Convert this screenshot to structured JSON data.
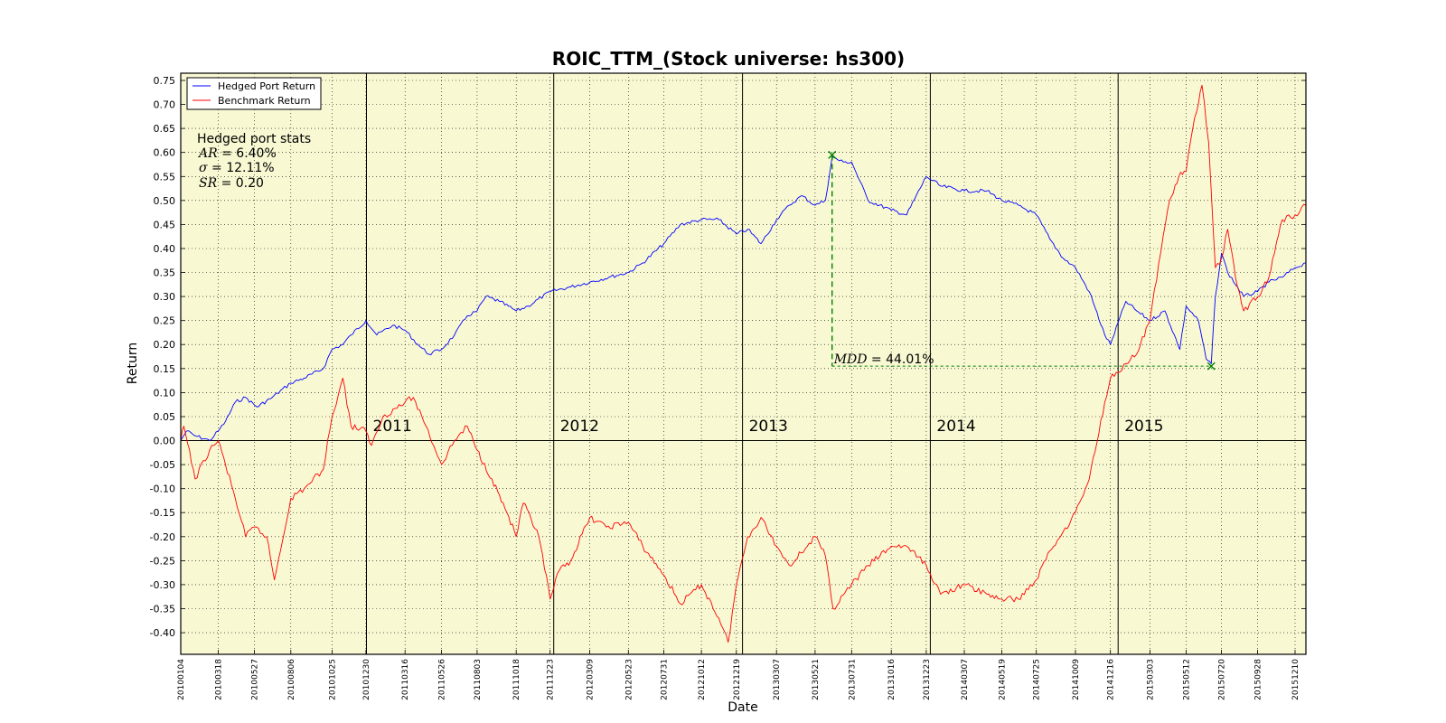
{
  "chart_data": {
    "type": "line",
    "title": "ROIC_TTM_(Stock universe: hs300)",
    "xlabel": "Date",
    "ylabel": "Return",
    "ylim": [
      -0.445,
      0.765
    ],
    "yticks": [
      0.75,
      0.7,
      0.65,
      0.6,
      0.55,
      0.5,
      0.45,
      0.4,
      0.35,
      0.3,
      0.25,
      0.2,
      0.15,
      0.1,
      0.05,
      0.0,
      -0.05,
      -0.1,
      -0.15,
      -0.2,
      -0.25,
      -0.3,
      -0.35,
      -0.4
    ],
    "ytick_labels": [
      "0.75",
      "0.70",
      "0.65",
      "0.60",
      "0.55",
      "0.50",
      "0.45",
      "0.40",
      "0.35",
      "0.30",
      "0.25",
      "0.20",
      "0.15",
      "0.10",
      "0.05",
      "0.00",
      "-0.05",
      "-0.10",
      "-0.15",
      "-0.20",
      "-0.25",
      "-0.30",
      "-0.35",
      "-0.40"
    ],
    "xlim": [
      "20100104",
      "20151231"
    ],
    "xticks": [
      "20100104",
      "20100318",
      "20100527",
      "20100806",
      "20101025",
      "20101230",
      "20110316",
      "20110526",
      "20110803",
      "20111018",
      "20111223",
      "20120309",
      "20120523",
      "20120731",
      "20121012",
      "20121219",
      "20130307",
      "20130521",
      "20130731",
      "20131016",
      "20131223",
      "20140307",
      "20140519",
      "20140725",
      "20141009",
      "20141216",
      "20150303",
      "20150512",
      "20150720",
      "20150928",
      "20151210"
    ],
    "year_boundaries": [
      {
        "label": "2011",
        "date": "20101231"
      },
      {
        "label": "2012",
        "date": "20111230"
      },
      {
        "label": "2013",
        "date": "20121231"
      },
      {
        "label": "2014",
        "date": "20131231"
      },
      {
        "label": "2015",
        "date": "20141231"
      }
    ],
    "grid": true,
    "legend_position": "top-left",
    "series": [
      {
        "name": "Hedged Port Return",
        "color": "#0000ff",
        "points": [
          [
            "20100104",
            0.0
          ],
          [
            "20100115",
            0.02
          ],
          [
            "20100201",
            0.01
          ],
          [
            "20100301",
            0.0
          ],
          [
            "20100318",
            0.02
          ],
          [
            "20100401",
            0.04
          ],
          [
            "20100420",
            0.08
          ],
          [
            "20100510",
            0.09
          ],
          [
            "20100601",
            0.07
          ],
          [
            "20100701",
            0.09
          ],
          [
            "20100806",
            0.12
          ],
          [
            "20100901",
            0.13
          ],
          [
            "20101008",
            0.15
          ],
          [
            "20101025",
            0.19
          ],
          [
            "20101115",
            0.2
          ],
          [
            "20101201",
            0.22
          ],
          [
            "20101230",
            0.25
          ],
          [
            "20110120",
            0.22
          ],
          [
            "20110220",
            0.24
          ],
          [
            "20110316",
            0.23
          ],
          [
            "20110410",
            0.2
          ],
          [
            "20110501",
            0.18
          ],
          [
            "20110526",
            0.19
          ],
          [
            "20110620",
            0.22
          ],
          [
            "20110715",
            0.26
          ],
          [
            "20110803",
            0.27
          ],
          [
            "20110820",
            0.3
          ],
          [
            "20110915",
            0.29
          ],
          [
            "20111018",
            0.27
          ],
          [
            "20111110",
            0.28
          ],
          [
            "20111223",
            0.31
          ],
          [
            "20120201",
            0.32
          ],
          [
            "20120309",
            0.33
          ],
          [
            "20120415",
            0.34
          ],
          [
            "20120523",
            0.35
          ],
          [
            "20120620",
            0.37
          ],
          [
            "20120731",
            0.41
          ],
          [
            "20120901",
            0.45
          ],
          [
            "20121012",
            0.46
          ],
          [
            "20121115",
            0.46
          ],
          [
            "20121219",
            0.43
          ],
          [
            "20130110",
            0.44
          ],
          [
            "20130205",
            0.41
          ],
          [
            "20130307",
            0.46
          ],
          [
            "20130401",
            0.49
          ],
          [
            "20130425",
            0.51
          ],
          [
            "20130521",
            0.49
          ],
          [
            "20130610",
            0.5
          ],
          [
            "20130623",
            0.59
          ],
          [
            "20130715",
            0.58
          ],
          [
            "20130731",
            0.58
          ],
          [
            "20130901",
            0.5
          ],
          [
            "20131016",
            0.48
          ],
          [
            "20131115",
            0.47
          ],
          [
            "20131223",
            0.55
          ],
          [
            "20140120",
            0.53
          ],
          [
            "20140307",
            0.52
          ],
          [
            "20140420",
            0.52
          ],
          [
            "20140519",
            0.5
          ],
          [
            "20140620",
            0.49
          ],
          [
            "20140725",
            0.47
          ],
          [
            "20140820",
            0.42
          ],
          [
            "20140915",
            0.38
          ],
          [
            "20141009",
            0.36
          ],
          [
            "20141105",
            0.31
          ],
          [
            "20141205",
            0.22
          ],
          [
            "20141216",
            0.2
          ],
          [
            "20150115",
            0.29
          ],
          [
            "20150205",
            0.27
          ],
          [
            "20150303",
            0.25
          ],
          [
            "20150401",
            0.27
          ],
          [
            "20150430",
            0.19
          ],
          [
            "20150512",
            0.28
          ],
          [
            "20150605",
            0.25
          ],
          [
            "20150620",
            0.17
          ],
          [
            "20150630",
            0.16
          ],
          [
            "20150708",
            0.3
          ],
          [
            "20150720",
            0.39
          ],
          [
            "20150801",
            0.35
          ],
          [
            "20150901",
            0.3
          ],
          [
            "20150928",
            0.31
          ],
          [
            "20151020",
            0.33
          ],
          [
            "20151115",
            0.34
          ],
          [
            "20151210",
            0.36
          ],
          [
            "20151231",
            0.37
          ]
        ]
      },
      {
        "name": "Benchmark Return",
        "color": "#ff0000",
        "points": [
          [
            "20100104",
            0.0
          ],
          [
            "20100110",
            0.03
          ],
          [
            "20100201",
            -0.08
          ],
          [
            "20100301",
            -0.02
          ],
          [
            "20100318",
            0.0
          ],
          [
            "20100401",
            -0.05
          ],
          [
            "20100420",
            -0.12
          ],
          [
            "20100510",
            -0.2
          ],
          [
            "20100527",
            -0.18
          ],
          [
            "20100620",
            -0.2
          ],
          [
            "20100705",
            -0.29
          ],
          [
            "20100806",
            -0.12
          ],
          [
            "20100901",
            -0.1
          ],
          [
            "20101008",
            -0.06
          ],
          [
            "20101025",
            0.05
          ],
          [
            "20101115",
            0.13
          ],
          [
            "20101201",
            0.03
          ],
          [
            "20101230",
            0.02
          ],
          [
            "20110110",
            -0.01
          ],
          [
            "20110201",
            0.05
          ],
          [
            "20110316",
            0.08
          ],
          [
            "20110401",
            0.09
          ],
          [
            "20110426",
            0.03
          ],
          [
            "20110526",
            -0.05
          ],
          [
            "20110620",
            0.0
          ],
          [
            "20110715",
            0.03
          ],
          [
            "20110803",
            -0.02
          ],
          [
            "20110901",
            -0.08
          ],
          [
            "20110930",
            -0.15
          ],
          [
            "20111018",
            -0.2
          ],
          [
            "20111101",
            -0.13
          ],
          [
            "20111201",
            -0.2
          ],
          [
            "20111223",
            -0.33
          ],
          [
            "20120110",
            -0.27
          ],
          [
            "20120201",
            -0.25
          ],
          [
            "20120309",
            -0.16
          ],
          [
            "20120410",
            -0.18
          ],
          [
            "20120523",
            -0.17
          ],
          [
            "20120620",
            -0.22
          ],
          [
            "20120731",
            -0.28
          ],
          [
            "20120901",
            -0.34
          ],
          [
            "20121012",
            -0.3
          ],
          [
            "20121115",
            -0.37
          ],
          [
            "20121203",
            -0.42
          ],
          [
            "20121219",
            -0.3
          ],
          [
            "20130110",
            -0.2
          ],
          [
            "20130205",
            -0.16
          ],
          [
            "20130307",
            -0.22
          ],
          [
            "20130401",
            -0.26
          ],
          [
            "20130521",
            -0.2
          ],
          [
            "20130610",
            -0.24
          ],
          [
            "20130625",
            -0.35
          ],
          [
            "20130731",
            -0.3
          ],
          [
            "20130901",
            -0.26
          ],
          [
            "20131016",
            -0.22
          ],
          [
            "20131115",
            -0.22
          ],
          [
            "20131223",
            -0.26
          ],
          [
            "20140120",
            -0.32
          ],
          [
            "20140307",
            -0.3
          ],
          [
            "20140420",
            -0.32
          ],
          [
            "20140519",
            -0.33
          ],
          [
            "20140620",
            -0.33
          ],
          [
            "20140725",
            -0.29
          ],
          [
            "20140820",
            -0.23
          ],
          [
            "20140915",
            -0.19
          ],
          [
            "20141009",
            -0.15
          ],
          [
            "20141105",
            -0.08
          ],
          [
            "20141205",
            0.08
          ],
          [
            "20141216",
            0.13
          ],
          [
            "20150115",
            0.16
          ],
          [
            "20150205",
            0.18
          ],
          [
            "20150303",
            0.25
          ],
          [
            "20150320",
            0.37
          ],
          [
            "20150410",
            0.5
          ],
          [
            "20150428",
            0.55
          ],
          [
            "20150512",
            0.56
          ],
          [
            "20150525",
            0.65
          ],
          [
            "20150612",
            0.74
          ],
          [
            "20150625",
            0.62
          ],
          [
            "20150708",
            0.36
          ],
          [
            "20150720",
            0.38
          ],
          [
            "20150801",
            0.44
          ],
          [
            "20150820",
            0.32
          ],
          [
            "20150901",
            0.27
          ],
          [
            "20150928",
            0.3
          ],
          [
            "20151020",
            0.34
          ],
          [
            "20151115",
            0.46
          ],
          [
            "20151210",
            0.47
          ],
          [
            "20151231",
            0.49
          ]
        ]
      }
    ],
    "mdd": {
      "peak": {
        "date": "20130623",
        "value": 0.595
      },
      "trough": {
        "date": "20150630",
        "value": 0.155
      },
      "label_prefix": "MDD = ",
      "value": "44.01%",
      "color": "#008000"
    },
    "stats": {
      "title": "Hedged port stats",
      "ar_label": "AR = ",
      "ar_value": "6.40%",
      "sigma_label": "σ = ",
      "sigma_value": "12.11%",
      "sr_label": "SR = ",
      "sr_value": "0.20"
    },
    "colors": {
      "plot_background": "#f8f8d3",
      "hedged": "#0000ff",
      "benchmark": "#ff0000",
      "mdd": "#008000"
    }
  }
}
